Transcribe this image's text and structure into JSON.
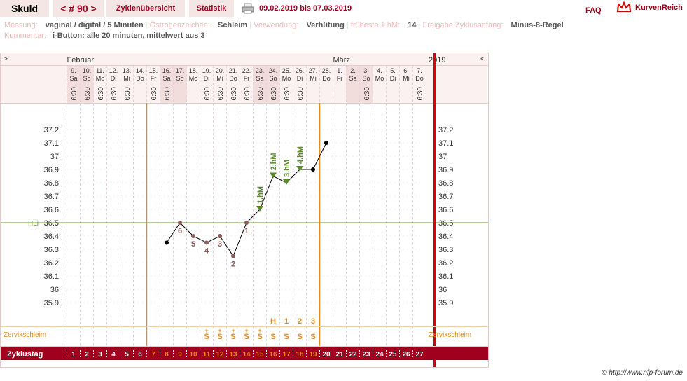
{
  "header": {
    "name": "Skuld",
    "cycle": "< # 90 >",
    "tab_overview": "Zyklenübersicht",
    "tab_stats": "Statistik",
    "date_range": "09.02.2019 bis 07.03.2019",
    "faq": "FAQ",
    "brand": "KurvenReich"
  },
  "info": {
    "row1": [
      {
        "k": "Messung:",
        "v": "vaginal / digital / 5 Minuten"
      },
      {
        "k": "Östrogenzeichen:",
        "v": "Schleim"
      },
      {
        "k": "Verwendung:",
        "v": "Verhütung"
      },
      {
        "k": "früheste 1.hM:",
        "v": "14"
      },
      {
        "k": "Freigabe Zyklusanfang:",
        "v": "Minus-8-Regel"
      }
    ],
    "row2": {
      "k": "Kommentar:",
      "v": "i-Button: alle 20 minuten, mittelwert aus 3"
    }
  },
  "chart_data": {
    "type": "line",
    "year": "2019",
    "nav_left": ">",
    "nav_right": "<",
    "months": [
      {
        "label": "Februar",
        "at_day": 1
      },
      {
        "label": "März",
        "at_day": 21
      }
    ],
    "dates": [
      "9.",
      "10.",
      "11.",
      "12.",
      "13.",
      "14.",
      "15.",
      "16.",
      "17.",
      "18.",
      "19.",
      "20.",
      "21.",
      "22.",
      "23.",
      "24.",
      "25.",
      "26.",
      "27.",
      "28.",
      "1.",
      "2.",
      "3.",
      "4.",
      "5.",
      "6.",
      "7."
    ],
    "weekdays": [
      "Sa",
      "So",
      "Mo",
      "Di",
      "Mi",
      "Do",
      "Fr",
      "Sa",
      "So",
      "Mo",
      "Di",
      "Mi",
      "Do",
      "Fr",
      "Sa",
      "So",
      "Mo",
      "Di",
      "Mi",
      "Do",
      "Fr",
      "Sa",
      "So",
      "Mo",
      "Di",
      "Mi",
      "Do"
    ],
    "shaded_days": [
      1,
      2,
      8,
      9,
      15,
      16,
      22,
      23
    ],
    "times": [
      "6:30",
      "6:30",
      "6:30",
      "6:30",
      "6:30",
      "",
      "6:30",
      "6:30",
      "",
      "",
      "6:30",
      "6:30",
      "6:30",
      "6:30",
      "6:30",
      "6:30",
      "6:30",
      "6:30",
      "",
      "",
      "",
      "",
      "6:30",
      "",
      "",
      "",
      "6:30"
    ],
    "cycle_days": [
      "1",
      "2",
      "3",
      "4",
      "5",
      "6",
      "7",
      "8",
      "9",
      "10",
      "11",
      "12",
      "13",
      "14",
      "15",
      "16",
      "17",
      "18",
      "19",
      "20",
      "21",
      "22",
      "23",
      "24",
      "25",
      "26",
      "27"
    ],
    "ylim": [
      35.9,
      37.2
    ],
    "yticks": [
      "37.2",
      "37.1",
      "37",
      "36.9",
      "36.8",
      "36.7",
      "36.6",
      "36.5",
      "36.4",
      "36.3",
      "36.2",
      "36.1",
      "36",
      "35.9"
    ],
    "hli": {
      "label": "HLi",
      "value": 36.5
    },
    "x": [
      8,
      9,
      10,
      11,
      12,
      13,
      14,
      15,
      16,
      17,
      18,
      19,
      20
    ],
    "temps": [
      36.35,
      36.5,
      36.4,
      36.35,
      36.4,
      36.25,
      36.5,
      36.6,
      36.85,
      36.8,
      36.9,
      36.9,
      37.1
    ],
    "low_labels": [
      {
        "day": 9,
        "t": "6"
      },
      {
        "day": 10,
        "t": "5"
      },
      {
        "day": 11,
        "t": "4"
      },
      {
        "day": 12,
        "t": "3"
      },
      {
        "day": 13,
        "t": "2"
      },
      {
        "day": 14,
        "t": "1"
      }
    ],
    "high_labels": [
      {
        "day": 15,
        "t": "1.hM"
      },
      {
        "day": 16,
        "t": "2.hM"
      },
      {
        "day": 17,
        "t": "3.hM"
      },
      {
        "day": 18,
        "t": "4.hM"
      }
    ],
    "mucus_label": "Zervixschleim",
    "mucus": [
      {
        "day": 11,
        "s": "S",
        "plus": "+"
      },
      {
        "day": 12,
        "s": "S",
        "plus": "+"
      },
      {
        "day": 13,
        "s": "S",
        "plus": "+"
      },
      {
        "day": 14,
        "s": "S",
        "plus": "+"
      },
      {
        "day": 15,
        "s": "S",
        "plus": "+"
      },
      {
        "day": 16,
        "s": "S",
        "top": "H"
      },
      {
        "day": 17,
        "s": "S",
        "top": "1"
      },
      {
        "day": 18,
        "s": "S",
        "top": "2"
      },
      {
        "day": 19,
        "s": "S",
        "top": "3"
      }
    ],
    "zyklustag_label": "Zyklustag",
    "orange_lines_after_day": [
      6,
      19
    ],
    "red_line_after_day": 27,
    "colors": {
      "accent": "#a0001e",
      "orange": "#e88a1a",
      "low": "#8b5a5a",
      "high": "#5a8a2a",
      "hli": "#6b9a3a"
    }
  },
  "footer": {
    "copyright": "© http://www.nfp-forum.de"
  }
}
